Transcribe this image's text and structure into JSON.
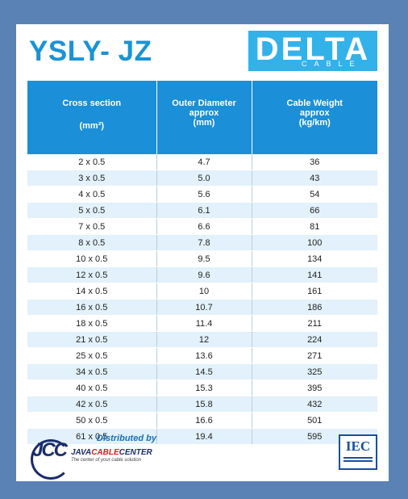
{
  "product": {
    "title": "YSLY- JZ"
  },
  "brand": {
    "name": "DELTA",
    "sub": "CABLE"
  },
  "table": {
    "headers": {
      "col1": "Cross section",
      "col1_unit": "(mm²)",
      "col2_line1": "Outer Diameter",
      "col2_line2": "approx",
      "col2_line3": "(mm)",
      "col3_line1": "Cable Weight",
      "col3_line2": "approx",
      "col3_line3": "(kg/km)"
    },
    "rows": [
      [
        "2 x 0.5",
        "4.7",
        "36"
      ],
      [
        "3 x 0.5",
        "5.0",
        "43"
      ],
      [
        "4 x 0.5",
        "5.6",
        "54"
      ],
      [
        "5 x 0.5",
        "6.1",
        "66"
      ],
      [
        "7 x 0.5",
        "6.6",
        "81"
      ],
      [
        "8 x 0.5",
        "7.8",
        "100"
      ],
      [
        "10 x 0.5",
        "9.5",
        "134"
      ],
      [
        "12 x 0.5",
        "9.6",
        "141"
      ],
      [
        "14 x 0.5",
        "10",
        "161"
      ],
      [
        "16 x 0.5",
        "10.7",
        "186"
      ],
      [
        "18 x 0.5",
        "11.4",
        "211"
      ],
      [
        "21 x 0.5",
        "12",
        "224"
      ],
      [
        "25 x 0.5",
        "13.6",
        "271"
      ],
      [
        "34 x 0.5",
        "14.5",
        "325"
      ],
      [
        "40 x 0.5",
        "15.3",
        "395"
      ],
      [
        "42 x 0.5",
        "15.8",
        "432"
      ],
      [
        "50 x 0.5",
        "16.6",
        "501"
      ],
      [
        "61 x 0.5",
        "19.4",
        "595"
      ]
    ]
  },
  "distributor": {
    "label": "Distributed by",
    "mark": "JCC",
    "name_part1": "JAVA",
    "name_part2": "CABLE",
    "name_part3": "CENTER",
    "slogan": "The center of your cable solution"
  },
  "certification": {
    "label": "IEC"
  },
  "colors": {
    "page_bg": "#5b82b5",
    "header_bg": "#1b8fd7",
    "row_alt": "#e2f1fb",
    "title": "#1a93d6",
    "brand_bg": "#33b2ea"
  }
}
